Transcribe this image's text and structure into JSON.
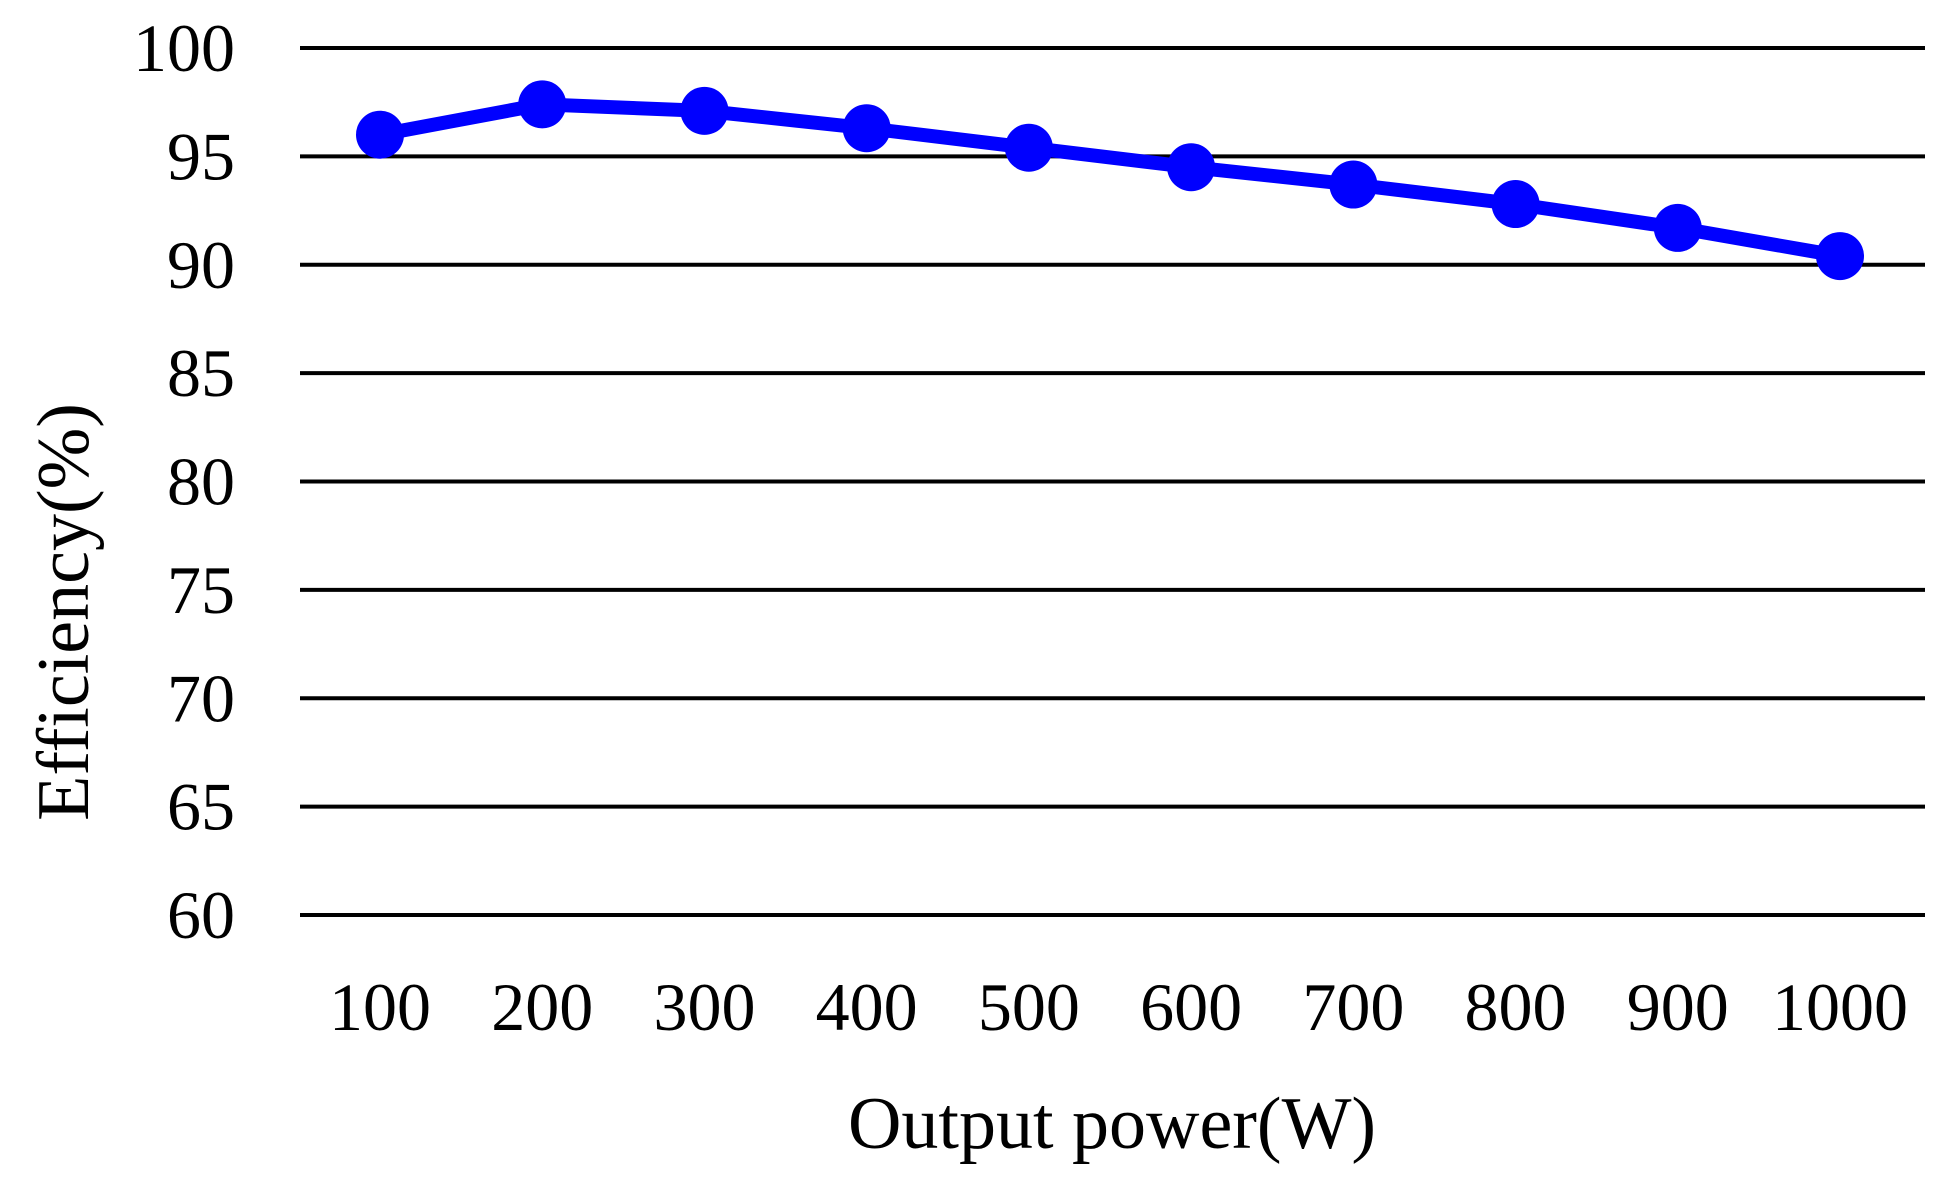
{
  "chart_data": {
    "type": "line",
    "title": "",
    "xlabel": "Output power(W)",
    "ylabel": "Efficiency(%)",
    "categories": [
      "100",
      "200",
      "300",
      "400",
      "500",
      "600",
      "700",
      "800",
      "900",
      "1000"
    ],
    "series": [
      {
        "values": [
          96.0,
          97.4,
          97.1,
          96.3,
          95.4,
          94.5,
          93.7,
          92.8,
          91.7,
          90.4
        ],
        "color": "#0000FF"
      }
    ],
    "ylim": [
      60,
      100
    ],
    "yticks": [
      "60",
      "65",
      "70",
      "75",
      "80",
      "85",
      "90",
      "95",
      "100"
    ],
    "grid": true,
    "legend": "none"
  }
}
